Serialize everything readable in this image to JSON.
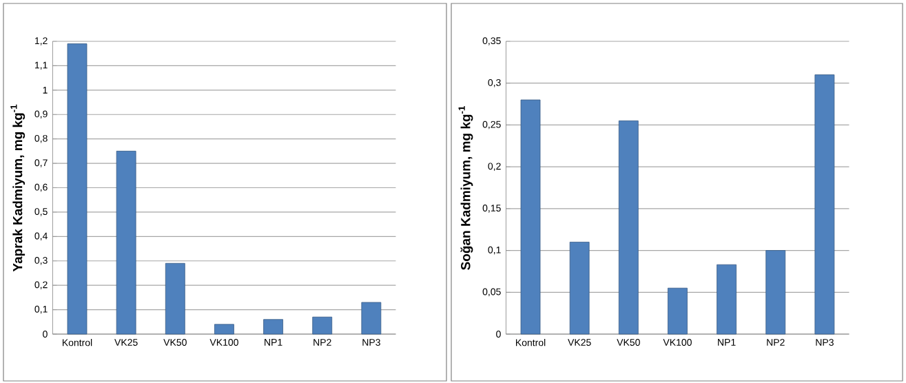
{
  "chart_data": [
    {
      "type": "bar",
      "ylabel": "Yaprak Kadmiyum, mg kg$^{-1}$",
      "categories": [
        "Kontrol",
        "VK25",
        "VK50",
        "VK100",
        "NP1",
        "NP2",
        "NP3"
      ],
      "values": [
        1.19,
        0.75,
        0.29,
        0.04,
        0.06,
        0.07,
        0.13
      ],
      "color": "#4f81bd",
      "ylim": [
        0,
        1.2
      ],
      "yticks": [
        0,
        {
          "value": 0.1,
          "label": "0,1"
        },
        {
          "value": 0.2,
          "label": "0,2"
        },
        {
          "value": 0.3,
          "label": "0,3"
        },
        {
          "value": 0.4,
          "label": "0,4"
        },
        {
          "value": 0.5,
          "label": "0,5"
        },
        {
          "value": 0.6,
          "label": "0,6"
        },
        {
          "value": 0.7,
          "label": "0,7"
        },
        {
          "value": 0.8,
          "label": "0,8"
        },
        {
          "value": 0.9,
          "label": "0,9"
        },
        1,
        {
          "value": 1.1,
          "label": "1,1"
        },
        {
          "value": 1.2,
          "label": "1,2"
        }
      ],
      "grid": "y"
    },
    {
      "type": "bar",
      "ylabel": "Soğan Kadmiyum, mg kg$^{-1}$",
      "categories": [
        "Kontrol",
        "VK25",
        "VK50",
        "VK100",
        "NP1",
        "NP2",
        "NP3"
      ],
      "values": [
        0.28,
        0.11,
        0.255,
        0.055,
        0.083,
        0.1,
        0.31
      ],
      "color": "#4f81bd",
      "ylim": [
        0,
        0.35
      ],
      "yticks": [
        0,
        {
          "value": 0.05,
          "label": "0,05"
        },
        {
          "value": 0.1,
          "label": "0,1"
        },
        {
          "value": 0.15,
          "label": "0,15"
        },
        {
          "value": 0.2,
          "label": "0,2"
        },
        {
          "value": 0.25,
          "label": "0,25"
        },
        {
          "value": 0.3,
          "label": "0,3"
        },
        {
          "value": 0.35,
          "label": "0,35"
        }
      ],
      "grid": "y"
    }
  ]
}
